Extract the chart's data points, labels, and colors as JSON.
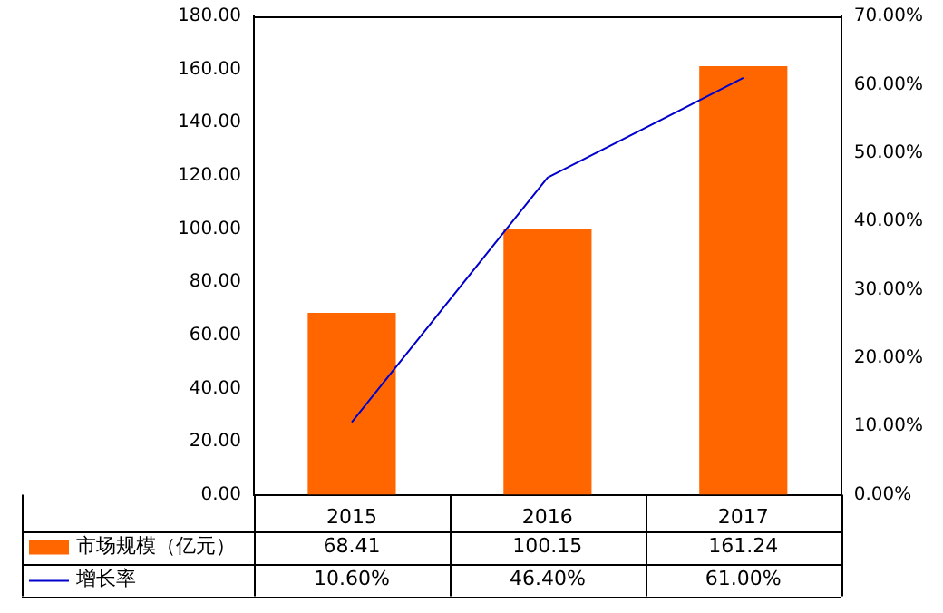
{
  "chart_data": {
    "type": "bar",
    "categories": [
      "2015",
      "2016",
      "2017"
    ],
    "series": [
      {
        "name": "市场规模（亿元）",
        "color": "#ff6600",
        "values": [
          68.41,
          100.15,
          161.24
        ],
        "value_labels": [
          "68.41",
          "100.15",
          "161.24"
        ]
      },
      {
        "name": "增长率",
        "type": "line",
        "axis": "y2",
        "color": "#0000cc",
        "values": [
          10.6,
          46.4,
          61.0
        ],
        "value_labels": [
          "10.60%",
          "46.40%",
          "61.00%"
        ]
      }
    ],
    "ylim": [
      0,
      180
    ],
    "yticks": [
      {
        "value": 0,
        "label": "0.00"
      },
      {
        "value": 20,
        "label": "20.00"
      },
      {
        "value": 40,
        "label": "40.00"
      },
      {
        "value": 60,
        "label": "60.00"
      },
      {
        "value": 80,
        "label": "80.00"
      },
      {
        "value": 100,
        "label": "100.00"
      },
      {
        "value": 120,
        "label": "120.00"
      },
      {
        "value": 140,
        "label": "140.00"
      },
      {
        "value": 160,
        "label": "160.00"
      },
      {
        "value": 180,
        "label": "180.00"
      }
    ],
    "y2lim": [
      0,
      70
    ],
    "y2ticks": [
      {
        "value": 0,
        "label": "0.00%"
      },
      {
        "value": 10,
        "label": "10.00%"
      },
      {
        "value": 20,
        "label": "20.00%"
      },
      {
        "value": 30,
        "label": "30.00%"
      },
      {
        "value": 40,
        "label": "40.00%"
      },
      {
        "value": 50,
        "label": "50.00%"
      },
      {
        "value": 60,
        "label": "60.00%"
      },
      {
        "value": 70,
        "label": "70.00%"
      }
    ],
    "grid": false,
    "legend": "bottom",
    "marker": "none",
    "line_style": "solid"
  }
}
